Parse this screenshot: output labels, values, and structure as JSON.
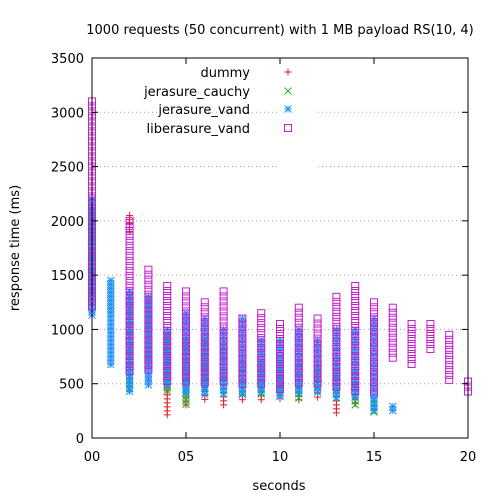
{
  "chart_data": {
    "type": "scatter",
    "title": "1000 requests (50 concurrent) with 1 MB payload RS(10, 4)",
    "xlabel": "seconds",
    "ylabel": "response time (ms)",
    "xlim": [
      0,
      20
    ],
    "ylim": [
      0,
      3500
    ],
    "x_ticks": [
      0,
      5,
      10,
      15,
      20
    ],
    "x_tick_labels": [
      "00",
      "05",
      "10",
      "15",
      "20"
    ],
    "y_ticks": [
      0,
      500,
      1000,
      1500,
      2000,
      2500,
      3000,
      3500
    ],
    "y_tick_labels": [
      "0",
      "500",
      "1000",
      "1500",
      "2000",
      "2500",
      "3000",
      "3500"
    ],
    "grid": true,
    "legend_position": "top-right",
    "series": [
      {
        "name": "dummy",
        "marker": "plus",
        "color": "#e41a1c",
        "points": [
          {
            "x": 0,
            "lo": 1400,
            "hi": 2000
          },
          {
            "x": 2,
            "lo": 1900,
            "hi": 2050
          },
          {
            "x": 3,
            "lo": 500,
            "hi": 1300
          },
          {
            "x": 4,
            "lo": 180,
            "hi": 950
          },
          {
            "x": 5,
            "lo": 280,
            "hi": 600
          },
          {
            "x": 6,
            "lo": 350,
            "hi": 650
          },
          {
            "x": 7,
            "lo": 280,
            "hi": 600
          },
          {
            "x": 8,
            "lo": 350,
            "hi": 500
          },
          {
            "x": 9,
            "lo": 350,
            "hi": 500
          },
          {
            "x": 10,
            "lo": 350,
            "hi": 620
          },
          {
            "x": 11,
            "lo": 320,
            "hi": 500
          },
          {
            "x": 12,
            "lo": 350,
            "hi": 450
          },
          {
            "x": 13,
            "lo": 200,
            "hi": 600
          },
          {
            "x": 14,
            "lo": 300,
            "hi": 500
          },
          {
            "x": 15,
            "lo": 230,
            "hi": 300
          }
        ]
      },
      {
        "name": "jerasure_cauchy",
        "marker": "cross",
        "color": "#22b01e",
        "points": [
          {
            "x": 0,
            "lo": 1300,
            "hi": 2100
          },
          {
            "x": 1,
            "lo": 1150,
            "hi": 1450
          },
          {
            "x": 2,
            "lo": 450,
            "hi": 1300
          },
          {
            "x": 3,
            "lo": 700,
            "hi": 1250
          },
          {
            "x": 4,
            "lo": 420,
            "hi": 950
          },
          {
            "x": 5,
            "lo": 300,
            "hi": 900
          },
          {
            "x": 6,
            "lo": 450,
            "hi": 900
          },
          {
            "x": 7,
            "lo": 400,
            "hi": 850
          },
          {
            "x": 8,
            "lo": 400,
            "hi": 700
          },
          {
            "x": 9,
            "lo": 400,
            "hi": 700
          },
          {
            "x": 10,
            "lo": 380,
            "hi": 700
          },
          {
            "x": 11,
            "lo": 350,
            "hi": 700
          },
          {
            "x": 12,
            "lo": 450,
            "hi": 650
          },
          {
            "x": 13,
            "lo": 350,
            "hi": 700
          },
          {
            "x": 14,
            "lo": 280,
            "hi": 600
          },
          {
            "x": 15,
            "lo": 230,
            "hi": 350
          }
        ]
      },
      {
        "name": "jerasure_vand",
        "marker": "star",
        "color": "#1e90ff",
        "points": [
          {
            "x": 0,
            "lo": 1100,
            "hi": 2200
          },
          {
            "x": 1,
            "lo": 650,
            "hi": 1450
          },
          {
            "x": 2,
            "lo": 420,
            "hi": 1350
          },
          {
            "x": 3,
            "lo": 480,
            "hi": 1300
          },
          {
            "x": 4,
            "lo": 450,
            "hi": 1000
          },
          {
            "x": 5,
            "lo": 400,
            "hi": 1150
          },
          {
            "x": 6,
            "lo": 400,
            "hi": 1100
          },
          {
            "x": 7,
            "lo": 400,
            "hi": 1000
          },
          {
            "x": 8,
            "lo": 400,
            "hi": 1100
          },
          {
            "x": 9,
            "lo": 400,
            "hi": 900
          },
          {
            "x": 10,
            "lo": 380,
            "hi": 900
          },
          {
            "x": 11,
            "lo": 400,
            "hi": 1000
          },
          {
            "x": 12,
            "lo": 400,
            "hi": 900
          },
          {
            "x": 13,
            "lo": 350,
            "hi": 1000
          },
          {
            "x": 14,
            "lo": 350,
            "hi": 1000
          },
          {
            "x": 15,
            "lo": 230,
            "hi": 1100
          },
          {
            "x": 16,
            "lo": 230,
            "hi": 290
          }
        ]
      },
      {
        "name": "liberasure_vand",
        "marker": "square",
        "color": "#c41fcf",
        "points": [
          {
            "x": 0,
            "lo": 1200,
            "hi": 3100
          },
          {
            "x": 2,
            "lo": 600,
            "hi": 2000
          },
          {
            "x": 3,
            "lo": 600,
            "hi": 1550
          },
          {
            "x": 4,
            "lo": 500,
            "hi": 1400
          },
          {
            "x": 5,
            "lo": 500,
            "hi": 1350
          },
          {
            "x": 6,
            "lo": 500,
            "hi": 1250
          },
          {
            "x": 7,
            "lo": 500,
            "hi": 1350
          },
          {
            "x": 8,
            "lo": 500,
            "hi": 1100
          },
          {
            "x": 9,
            "lo": 500,
            "hi": 1150
          },
          {
            "x": 10,
            "lo": 450,
            "hi": 1050
          },
          {
            "x": 11,
            "lo": 500,
            "hi": 1200
          },
          {
            "x": 12,
            "lo": 500,
            "hi": 1100
          },
          {
            "x": 13,
            "lo": 450,
            "hi": 1300
          },
          {
            "x": 14,
            "lo": 400,
            "hi": 1400
          },
          {
            "x": 15,
            "lo": 400,
            "hi": 1250
          },
          {
            "x": 16,
            "lo": 700,
            "hi": 1200
          },
          {
            "x": 17,
            "lo": 650,
            "hi": 1050
          },
          {
            "x": 18,
            "lo": 800,
            "hi": 1050
          },
          {
            "x": 19,
            "lo": 500,
            "hi": 950
          },
          {
            "x": 20,
            "lo": 400,
            "hi": 520
          }
        ]
      }
    ]
  }
}
